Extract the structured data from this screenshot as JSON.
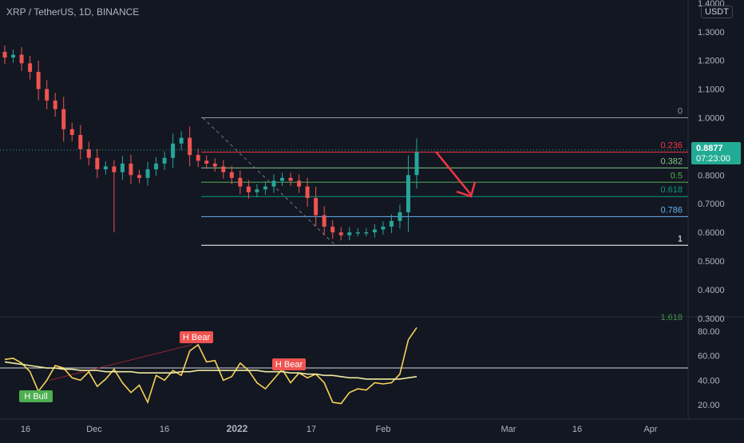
{
  "header": {
    "title": "XRP / TetherUS, 1D, BINANCE",
    "currency": "USDT"
  },
  "price_badge": {
    "price": "0.8877",
    "countdown": "07:23:00"
  },
  "colors": {
    "background": "#131722",
    "up": "#26a69a",
    "down": "#ef5350",
    "rsi_line": "#f7d354",
    "rsi_ma": "#f0e9a0",
    "arrow": "#f23645"
  },
  "chart_data": [
    {
      "type": "candlestick",
      "title": "XRP / TetherUS, 1D, BINANCE",
      "ylim": [
        0.3,
        1.4
      ],
      "y_ticks": [
        "1.4000",
        "1.3000",
        "1.2000",
        "1.1000",
        "1.0000",
        "0.9000",
        "0.8000",
        "0.7000",
        "0.6000",
        "0.5000",
        "0.4000",
        "0.3000"
      ],
      "x_ticks": [
        "16",
        "Dec",
        "16",
        "2022",
        "17",
        "Feb",
        "Mar",
        "16",
        "Apr"
      ],
      "close_trace": [
        1.21,
        1.22,
        1.19,
        1.16,
        1.1,
        1.06,
        1.03,
        0.96,
        0.94,
        0.89,
        0.86,
        0.82,
        0.83,
        0.81,
        0.84,
        0.8,
        0.79,
        0.82,
        0.84,
        0.86,
        0.91,
        0.93,
        0.87,
        0.85,
        0.84,
        0.83,
        0.81,
        0.79,
        0.76,
        0.74,
        0.75,
        0.76,
        0.78,
        0.79,
        0.78,
        0.76,
        0.72,
        0.66,
        0.62,
        0.6,
        0.59,
        0.6,
        0.6,
        0.6,
        0.61,
        0.62,
        0.64,
        0.67,
        0.8,
        0.88
      ],
      "fibonacci": [
        {
          "label": "0",
          "price": 1.0,
          "color": "#9598a1"
        },
        {
          "label": "0.236",
          "price": 0.88,
          "color": "#f23645"
        },
        {
          "label": "0.382",
          "price": 0.825,
          "color": "#81c784"
        },
        {
          "label": "0.5",
          "price": 0.775,
          "color": "#4caf50"
        },
        {
          "label": "0.618",
          "price": 0.725,
          "color": "#089981"
        },
        {
          "label": "0.786",
          "price": 0.655,
          "color": "#64b5f6"
        },
        {
          "label": "1",
          "price": 0.555,
          "color": "#ffffff"
        }
      ],
      "fib_partial_label": "1.618"
    },
    {
      "type": "line",
      "ylim": [
        10,
        90
      ],
      "y_ticks": [
        "80.00",
        "60.00",
        "40.00",
        "20.00"
      ],
      "series": [
        {
          "values": [
            57,
            58,
            54,
            47,
            31,
            40,
            52,
            50,
            42,
            40,
            47,
            35,
            41,
            49,
            38,
            30,
            36,
            22,
            44,
            40,
            48,
            44,
            64,
            69,
            55,
            56,
            40,
            43,
            54,
            48,
            38,
            33,
            41,
            49,
            38,
            46,
            42,
            45,
            38,
            22,
            21,
            30,
            33,
            32,
            38,
            37,
            38,
            45,
            73,
            83
          ]
        },
        {
          "values": [
            55,
            54,
            53,
            52,
            51,
            50,
            50,
            49,
            49,
            48,
            48,
            48,
            47,
            47,
            47,
            47,
            46,
            46,
            46,
            46,
            46,
            47,
            47,
            48,
            48,
            48,
            48,
            48,
            48,
            48,
            48,
            47,
            47,
            47,
            46,
            46,
            45,
            45,
            44,
            44,
            43,
            42,
            42,
            41,
            41,
            41,
            41,
            41,
            42,
            43
          ]
        }
      ],
      "annotations": [
        {
          "text": "H Bear",
          "color": "#ef5350"
        },
        {
          "text": "H Bear",
          "color": "#ef5350"
        },
        {
          "text": "H Bull",
          "color": "#4caf50"
        }
      ]
    }
  ]
}
